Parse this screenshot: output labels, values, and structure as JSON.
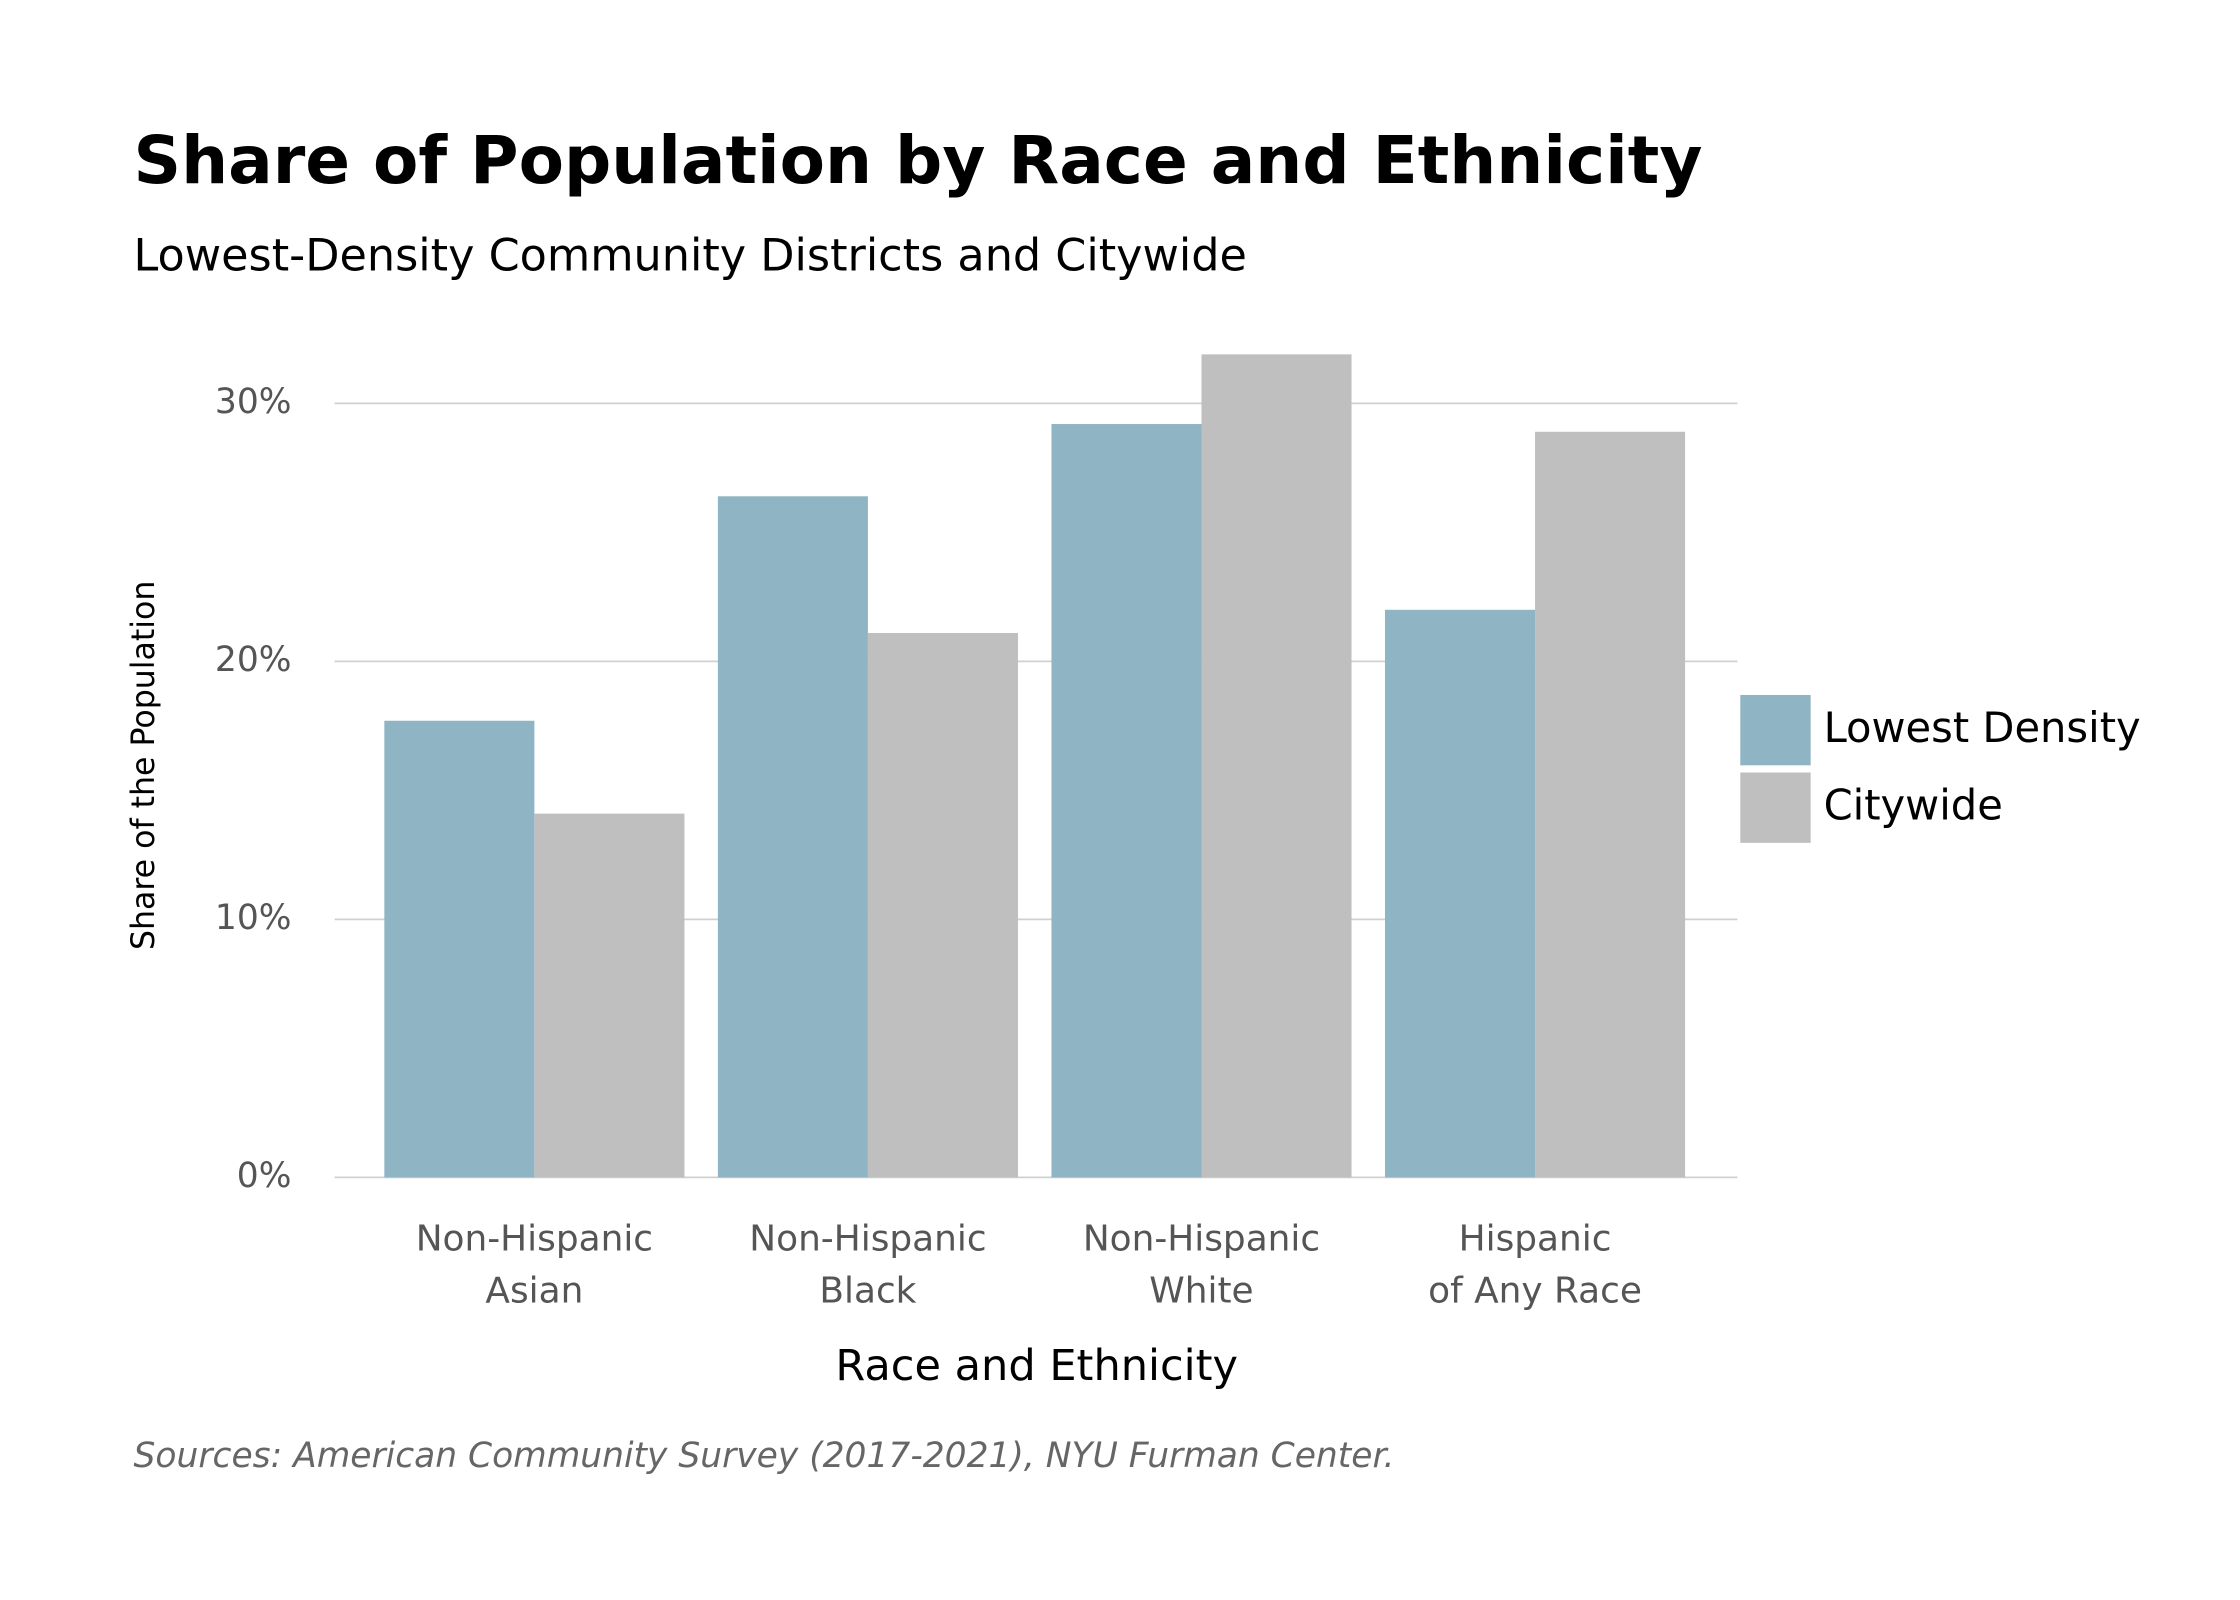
{
  "chart_data": {
    "type": "bar",
    "title": "Share of Population by Race and Ethnicity",
    "subtitle": "Lowest-Density Community Districts and Citywide",
    "x_label": "Race and Ethnicity",
    "y_label": "Share of the Population",
    "source": "Sources: American Community Survey (2017-2021), NYU Furman Center.",
    "categories": [
      [
        "Non-Hispanic",
        "Asian"
      ],
      [
        "Non-Hispanic",
        "Black"
      ],
      [
        "Non-Hispanic",
        "White"
      ],
      [
        "Hispanic",
        "of Any Race"
      ]
    ],
    "series": [
      {
        "name": "Lowest Density",
        "color": "#8fb5c4",
        "values": [
          17.7,
          26.4,
          29.2,
          22.0
        ]
      },
      {
        "name": "Citywide",
        "color": "#bfbfbf",
        "values": [
          14.1,
          21.1,
          31.9,
          28.9
        ]
      }
    ],
    "ylim": [
      0,
      32
    ],
    "yticks": [
      {
        "value": 0,
        "label": "0%"
      },
      {
        "value": 10,
        "label": "10%"
      },
      {
        "value": 20,
        "label": "20%"
      },
      {
        "value": 30,
        "label": "30%"
      }
    ],
    "grid": true,
    "legend": "right"
  }
}
